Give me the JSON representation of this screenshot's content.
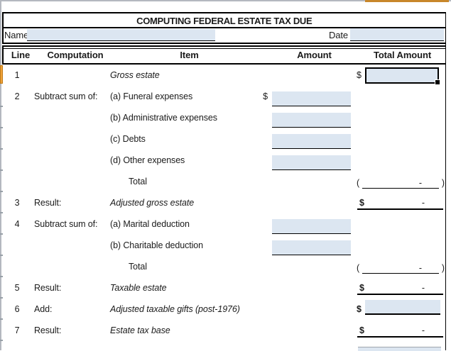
{
  "title": "COMPUTING FEDERAL ESTATE TAX DUE",
  "name_field": {
    "label": "Name",
    "value": ""
  },
  "date_field": {
    "label": "Date",
    "value": ""
  },
  "columns": {
    "line": "Line",
    "computation": "Computation",
    "item": "Item",
    "amount": "Amount",
    "total": "Total Amount"
  },
  "symbols": {
    "dollar": "$",
    "zero_dash": "-",
    "paren_open": "(",
    "paren_close": ")"
  },
  "colors": {
    "field_fill": "#dce6f1",
    "selection_orange": "#f0a238",
    "header_accent_orange": "#c8872a",
    "sheet_edge_gray": "#b4b8bf"
  },
  "rows": [
    {
      "line": "1",
      "computation": "",
      "item": "Gross estate"
    },
    {
      "line": "2",
      "computation": "Subtract sum of:",
      "item": "(a) Funeral expenses"
    },
    {
      "line": "",
      "computation": "",
      "item": "(b) Administrative expenses"
    },
    {
      "line": "",
      "computation": "",
      "item": "(c) Debts"
    },
    {
      "line": "",
      "computation": "",
      "item": "(d) Other expenses"
    },
    {
      "line": "",
      "computation": "",
      "item": "Total"
    },
    {
      "line": "3",
      "computation": "Result:",
      "item": "Adjusted gross estate"
    },
    {
      "line": "4",
      "computation": "Subtract sum of:",
      "item": "(a) Marital deduction"
    },
    {
      "line": "",
      "computation": "",
      "item": "(b) Charitable deduction"
    },
    {
      "line": "",
      "computation": "",
      "item": "Total"
    },
    {
      "line": "5",
      "computation": "Result:",
      "item": "Taxable estate"
    },
    {
      "line": "6",
      "computation": "Add:",
      "item": "Adjusted taxable gifts (post-1976)"
    },
    {
      "line": "7",
      "computation": "Result:",
      "item": "Estate tax base"
    }
  ]
}
